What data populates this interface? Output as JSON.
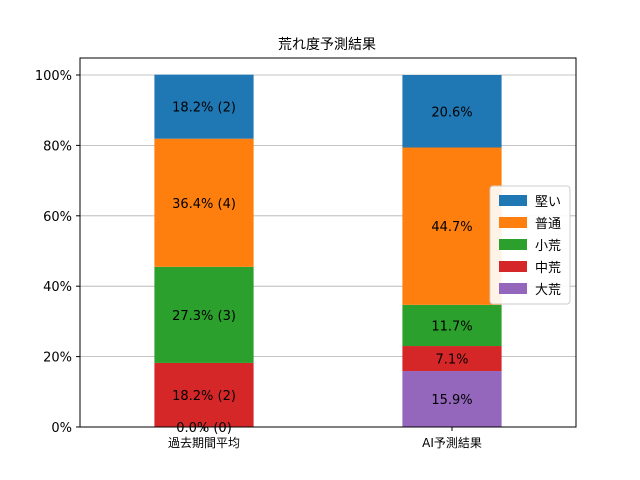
{
  "chart_data": {
    "type": "bar",
    "stacked": true,
    "percent": true,
    "title": "荒れ度予測結果",
    "xlabel": "",
    "ylabel": "",
    "ylim": [
      0,
      100
    ],
    "yticks": [
      "0%",
      "20%",
      "40%",
      "60%",
      "80%",
      "100%"
    ],
    "grid": "y",
    "legend_position": "right",
    "categories": [
      "過去期間平均",
      "AI予測結果"
    ],
    "series": [
      {
        "name": "大荒",
        "color": "#9467bd",
        "values": [
          0.0,
          15.9
        ],
        "labels": [
          "0.0% (0)",
          "15.9%"
        ]
      },
      {
        "name": "中荒",
        "color": "#d62728",
        "values": [
          18.2,
          7.1
        ],
        "labels": [
          "18.2% (2)",
          "7.1%"
        ]
      },
      {
        "name": "小荒",
        "color": "#2ca02c",
        "values": [
          27.3,
          11.7
        ],
        "labels": [
          "27.3% (3)",
          "11.7%"
        ]
      },
      {
        "name": "普通",
        "color": "#ff7f0e",
        "values": [
          36.4,
          44.7
        ],
        "labels": [
          "36.4% (4)",
          "44.7%"
        ]
      },
      {
        "name": "堅い",
        "color": "#1f77b4",
        "values": [
          18.2,
          20.6
        ],
        "labels": [
          "18.2% (2)",
          "20.6%"
        ]
      }
    ],
    "legend_order": [
      "堅い",
      "普通",
      "小荒",
      "中荒",
      "大荒"
    ]
  }
}
